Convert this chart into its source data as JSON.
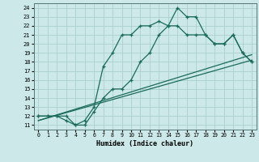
{
  "title": "",
  "xlabel": "Humidex (Indice chaleur)",
  "bg_color": "#cce8e8",
  "grid_color": "#aacfcf",
  "line_color": "#1a6b5a",
  "xlim": [
    -0.5,
    23.5
  ],
  "ylim": [
    10.5,
    24.5
  ],
  "xticks": [
    0,
    1,
    2,
    3,
    4,
    5,
    6,
    7,
    8,
    9,
    10,
    11,
    12,
    13,
    14,
    15,
    16,
    17,
    18,
    19,
    20,
    21,
    22,
    23
  ],
  "yticks": [
    11,
    12,
    13,
    14,
    15,
    16,
    17,
    18,
    19,
    20,
    21,
    22,
    23,
    24
  ],
  "line1_x": [
    0,
    1,
    2,
    3,
    4,
    5,
    6,
    7,
    8,
    9,
    10,
    11,
    12,
    13,
    14,
    15,
    16,
    17,
    18,
    19,
    20,
    21,
    22,
    23
  ],
  "line1_y": [
    12,
    12,
    12,
    12,
    11,
    11.5,
    13,
    17.5,
    19,
    21,
    21,
    22,
    22,
    22.5,
    22,
    24,
    23,
    23,
    21,
    20,
    20,
    21,
    19,
    18
  ],
  "line2_x": [
    0,
    1,
    2,
    3,
    4,
    5,
    6,
    7,
    8,
    9,
    10,
    11,
    12,
    13,
    14,
    15,
    16,
    17,
    18,
    19,
    20,
    21,
    22,
    23
  ],
  "line2_y": [
    12,
    12,
    12,
    11.5,
    11,
    11,
    12.5,
    14,
    15,
    15,
    16,
    18,
    19,
    21,
    22,
    22,
    21,
    21,
    21,
    20,
    20,
    21,
    19,
    18
  ],
  "line3_x": [
    0,
    23
  ],
  "line3_y": [
    11.5,
    18.2
  ],
  "line4_x": [
    0,
    23
  ],
  "line4_y": [
    11.5,
    18.8
  ]
}
